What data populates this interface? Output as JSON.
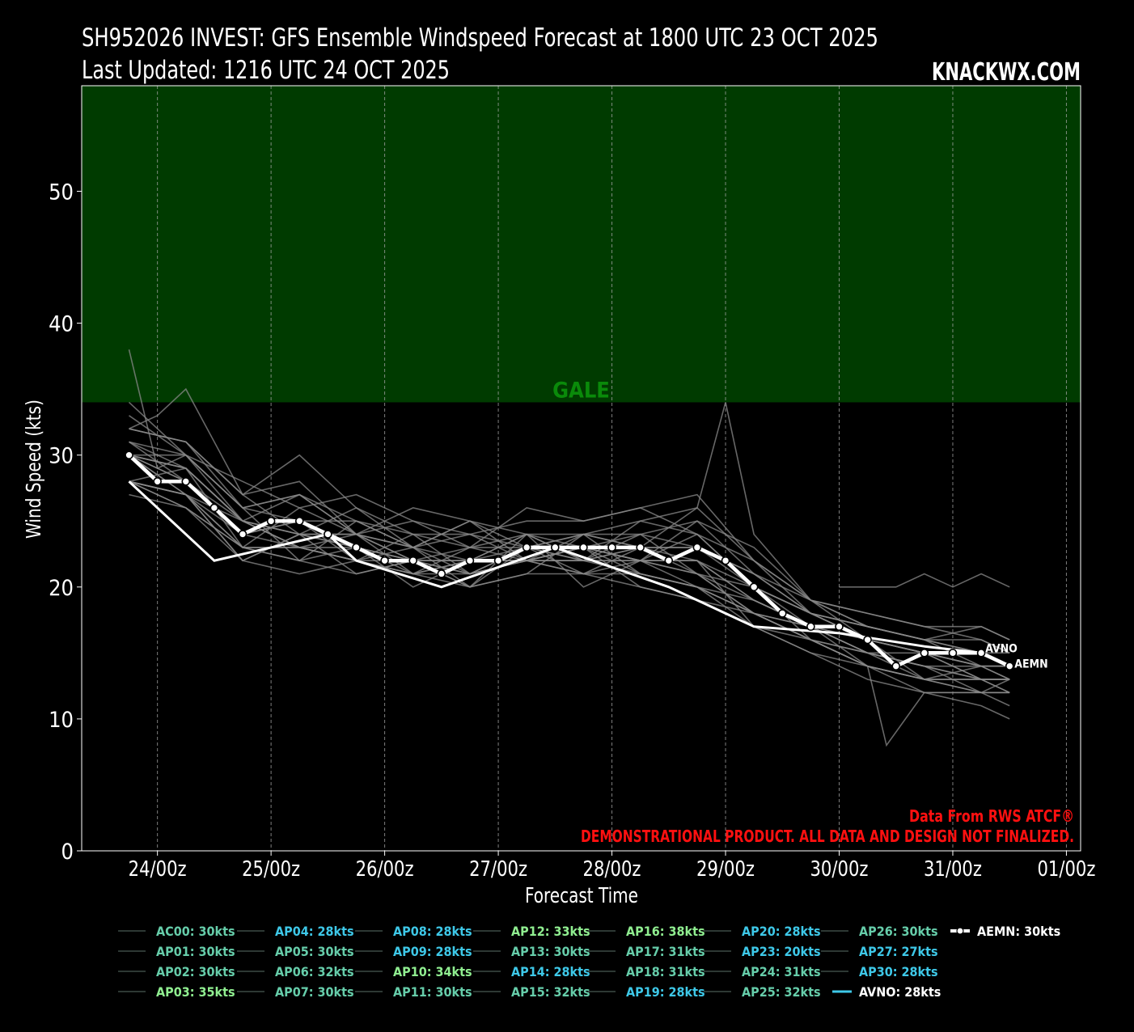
{
  "header": {
    "title": "SH952026 INVEST: GFS Ensemble Windspeed Forecast at 1800 UTC 23 OCT 2025",
    "updated": "Last Updated: 1216 UTC 24 OCT 2025",
    "brand": "KNACKWX.COM"
  },
  "credits": {
    "source": "Data From RWS ATCF®",
    "disclaimer": "DEMONSTRATIONAL PRODUCT. ALL DATA AND DESIGN NOT FINALIZED."
  },
  "colors": {
    "background": "#000000",
    "gale_band": "#003b00",
    "gale_label": "#0a8a0a",
    "ensemble_line": "#8a8a8a",
    "mean_line": "#ffffff",
    "credit_text": "#ff1010",
    "legend_green": "#90ee90",
    "legend_teal": "#66cdaa",
    "legend_cyan": "#3ec8e8"
  },
  "chart_data": {
    "type": "line",
    "xlabel": "Forecast Time",
    "ylabel": "Wind Speed (kts)",
    "ylim": [
      0,
      58
    ],
    "yticks": [
      0,
      10,
      20,
      30,
      40,
      50
    ],
    "x_tick_labels": [
      "24/00z",
      "25/00z",
      "26/00z",
      "27/00z",
      "28/00z",
      "29/00z",
      "30/00z",
      "31/00z",
      "01/00z"
    ],
    "x_tick_hours": [
      6,
      30,
      54,
      78,
      102,
      126,
      150,
      174,
      198
    ],
    "x_range_hours": [
      -10,
      201
    ],
    "threshold_band": {
      "label": "GALE",
      "from": 34,
      "to": 58
    },
    "grid": "vertical dashed at x ticks",
    "series": [
      {
        "name": "AEMN",
        "legend": "AEMN: 30kts",
        "style": "mean",
        "x": [
          0,
          6,
          12,
          18,
          24,
          30,
          36,
          42,
          48,
          54,
          60,
          66,
          72,
          78,
          84,
          90,
          96,
          102,
          108,
          114,
          120,
          126,
          132,
          138,
          144,
          150,
          156,
          162,
          168,
          174,
          180,
          186
        ],
        "y": [
          30,
          28,
          28,
          26,
          24,
          25,
          25,
          24,
          23,
          22,
          22,
          21,
          22,
          22,
          23,
          23,
          23,
          23,
          23,
          22,
          23,
          22,
          20,
          18,
          17,
          17,
          16,
          14,
          15,
          15,
          15,
          14
        ]
      },
      {
        "name": "AVNO",
        "legend": "AVNO: 28kts",
        "style": "deterministic",
        "x": [
          0,
          18,
          30,
          42,
          48,
          66,
          78,
          90,
          102,
          114,
          126,
          132,
          150,
          168,
          180
        ],
        "y": [
          28,
          22,
          23,
          24,
          22,
          20,
          21.5,
          23,
          21.5,
          20,
          18,
          17,
          16.5,
          15.5,
          15
        ]
      },
      {
        "name": "AC00",
        "legend": "AC00: 30kts",
        "color": "#66cdaa",
        "x": [
          0,
          12,
          24,
          36,
          48,
          60,
          72,
          84,
          96,
          108,
          120,
          132,
          144,
          156,
          168,
          180,
          186
        ],
        "y": [
          30,
          29,
          25,
          24,
          24,
          22,
          22,
          23,
          24,
          23,
          23,
          21,
          18,
          17,
          16,
          15,
          14
        ]
      },
      {
        "name": "AP01",
        "legend": "AP01: 30kts",
        "color": "#66cdaa",
        "x": [
          0,
          12,
          24,
          36,
          48,
          60,
          72,
          84,
          96,
          108,
          120,
          132,
          144,
          156,
          168,
          180,
          186
        ],
        "y": [
          30,
          28,
          24,
          25,
          23,
          22,
          21,
          23,
          23,
          22,
          22,
          19,
          17,
          15,
          14,
          13,
          13
        ]
      },
      {
        "name": "AP02",
        "legend": "AP02: 30kts",
        "color": "#66cdaa",
        "x": [
          0,
          12,
          24,
          36,
          48,
          60,
          72,
          84,
          96,
          108,
          120,
          132,
          144,
          156,
          168,
          180,
          186
        ],
        "y": [
          30,
          27,
          25,
          23,
          22,
          21,
          22,
          24,
          22,
          24,
          21,
          18,
          16,
          14,
          13,
          12,
          13
        ]
      },
      {
        "name": "AP03",
        "legend": "AP03: 35kts",
        "color": "#90ee90",
        "x": [
          0,
          6,
          12,
          24,
          36,
          48,
          60,
          72,
          84,
          96,
          108,
          120,
          132,
          144,
          156,
          168,
          180,
          186
        ],
        "y": [
          32,
          33,
          35,
          27,
          28,
          24,
          25,
          23,
          26,
          25,
          26,
          27,
          22,
          19,
          16,
          15,
          13,
          13
        ]
      },
      {
        "name": "AP04",
        "legend": "AP04: 28kts",
        "color": "#3ec8e8",
        "x": [
          0,
          12,
          24,
          36,
          48,
          60,
          72,
          84,
          96,
          108,
          120,
          132,
          144,
          156,
          168,
          180,
          186
        ],
        "y": [
          28,
          27,
          23,
          26,
          24,
          21,
          23,
          22,
          22,
          25,
          24,
          20,
          18,
          16,
          15,
          14,
          14
        ]
      },
      {
        "name": "AP05",
        "legend": "AP05: 30kts",
        "color": "#66cdaa",
        "x": [
          0,
          12,
          24,
          36,
          48,
          60,
          72,
          84,
          96,
          108,
          120,
          132,
          144,
          156,
          168,
          180,
          186
        ],
        "y": [
          30,
          30,
          26,
          22,
          25,
          23,
          20,
          21,
          24,
          21,
          20,
          19,
          17,
          15,
          14,
          12,
          12
        ]
      },
      {
        "name": "AP06",
        "legend": "AP06: 32kts",
        "color": "#66cdaa",
        "x": [
          0,
          12,
          24,
          36,
          48,
          60,
          72,
          84,
          96,
          108,
          120,
          132,
          144,
          156,
          168,
          180,
          186
        ],
        "y": [
          32,
          31,
          27,
          30,
          26,
          23,
          25,
          24,
          23,
          22,
          25,
          23,
          19,
          17,
          16,
          17,
          16
        ]
      },
      {
        "name": "AP07",
        "legend": "AP07: 30kts",
        "color": "#66cdaa",
        "x": [
          0,
          12,
          24,
          36,
          48,
          60,
          72,
          84,
          96,
          108,
          120,
          132,
          144,
          156,
          168,
          180,
          186
        ],
        "y": [
          30,
          29,
          25,
          23,
          22,
          24,
          21,
          23,
          22,
          23,
          23,
          20,
          16,
          15,
          13,
          14,
          13
        ]
      },
      {
        "name": "AP08",
        "legend": "AP08: 28kts",
        "color": "#3ec8e8",
        "x": [
          0,
          12,
          24,
          36,
          48,
          60,
          72,
          84,
          96,
          108,
          120,
          132,
          144,
          156,
          168,
          180,
          186
        ],
        "y": [
          28,
          27,
          22,
          24,
          23,
          20,
          22,
          22,
          21,
          23,
          21,
          18,
          17,
          16,
          13,
          12,
          12
        ]
      },
      {
        "name": "AP09",
        "legend": "AP09: 28kts",
        "color": "#3ec8e8",
        "x": [
          0,
          12,
          24,
          36,
          48,
          60,
          72,
          84,
          96,
          108,
          120,
          132,
          144,
          156,
          168,
          180,
          186
        ],
        "y": [
          28,
          29,
          23,
          22,
          21,
          22,
          20,
          24,
          20,
          22,
          22,
          17,
          15,
          13,
          12,
          11,
          10
        ]
      },
      {
        "name": "AP10",
        "legend": "AP10: 34kts",
        "color": "#90ee90",
        "x": [
          0,
          12,
          24,
          36,
          48,
          60,
          72,
          84,
          96,
          108,
          120,
          132,
          144,
          156,
          168,
          180,
          186
        ],
        "y": [
          34,
          30,
          28,
          26,
          27,
          25,
          24,
          25,
          25,
          26,
          24,
          22,
          19,
          18,
          17,
          16,
          15
        ]
      },
      {
        "name": "AP11",
        "legend": "AP11: 30kts",
        "color": "#66cdaa",
        "x": [
          0,
          12,
          24,
          36,
          48,
          60,
          72,
          84,
          96,
          108,
          120,
          132,
          144,
          156,
          168,
          180,
          186
        ],
        "y": [
          30,
          28,
          24,
          23,
          24,
          22,
          22,
          22,
          23,
          20,
          19,
          18,
          16,
          15,
          15,
          13,
          13
        ]
      },
      {
        "name": "AP12",
        "legend": "AP12: 33kts",
        "color": "#90ee90",
        "x": [
          0,
          12,
          24,
          36,
          48,
          60,
          72,
          84,
          96,
          108,
          120,
          132,
          144,
          156,
          168,
          180,
          186
        ],
        "y": [
          33,
          30,
          26,
          27,
          24,
          26,
          25,
          23,
          24,
          25,
          26,
          22,
          18,
          16,
          15,
          14,
          14
        ]
      },
      {
        "name": "AP13",
        "legend": "AP13: 30kts",
        "color": "#66cdaa",
        "x": [
          0,
          12,
          24,
          36,
          48,
          60,
          72,
          84,
          96,
          108,
          120,
          132,
          144,
          156,
          168,
          180,
          186
        ],
        "y": [
          30,
          27,
          24,
          25,
          22,
          23,
          21,
          22,
          23,
          22,
          21,
          19,
          17,
          14,
          13,
          13,
          12
        ]
      },
      {
        "name": "AP14",
        "legend": "AP14: 28kts",
        "color": "#3ec8e8",
        "x": [
          0,
          12,
          24,
          36,
          48,
          60,
          72,
          84,
          96,
          108,
          120,
          132,
          144,
          156,
          168,
          180,
          186
        ],
        "y": [
          28,
          26,
          23,
          22,
          23,
          21,
          22,
          22,
          22,
          21,
          20,
          18,
          17,
          15,
          14,
          13,
          13
        ]
      },
      {
        "name": "AP15",
        "legend": "AP15: 32kts",
        "color": "#66cdaa",
        "x": [
          0,
          12,
          24,
          36,
          48,
          60,
          72,
          84,
          96,
          108,
          120,
          132,
          144,
          156,
          168,
          180,
          186
        ],
        "y": [
          32,
          31,
          26,
          27,
          25,
          24,
          24,
          22,
          23,
          24,
          25,
          21,
          18,
          17,
          16,
          15,
          15
        ]
      },
      {
        "name": "AP16",
        "legend": "AP16: 38kts",
        "color": "#90ee90",
        "x": [
          0,
          6,
          12,
          24,
          36,
          48,
          60,
          72,
          84,
          96,
          108,
          120,
          126,
          132,
          144,
          156,
          168,
          180,
          186
        ],
        "y": [
          38,
          29,
          30,
          25,
          27,
          24,
          23,
          25,
          22,
          24,
          23,
          26,
          34,
          24,
          19,
          17,
          16,
          14,
          14
        ]
      },
      {
        "name": "AP17",
        "legend": "AP17: 31kts",
        "color": "#66cdaa",
        "x": [
          0,
          12,
          24,
          36,
          48,
          60,
          72,
          84,
          96,
          108,
          120,
          132,
          144,
          156,
          168,
          180,
          186
        ],
        "y": [
          31,
          29,
          25,
          24,
          24,
          23,
          22,
          24,
          22,
          23,
          22,
          20,
          17,
          16,
          15,
          15,
          14
        ]
      },
      {
        "name": "AP18",
        "legend": "AP18: 31kts",
        "color": "#66cdaa",
        "x": [
          0,
          12,
          24,
          36,
          48,
          60,
          72,
          84,
          96,
          108,
          120,
          132,
          144,
          156,
          168,
          180,
          186
        ],
        "y": [
          31,
          28,
          25,
          23,
          23,
          22,
          23,
          23,
          22,
          22,
          24,
          20,
          18,
          17,
          16,
          16,
          15
        ]
      },
      {
        "name": "AP19",
        "legend": "AP19: 28kts",
        "color": "#3ec8e8",
        "x": [
          0,
          12,
          24,
          36,
          48,
          60,
          72,
          84,
          96,
          108,
          120,
          132,
          144,
          156,
          168,
          180,
          186
        ],
        "y": [
          28,
          27,
          22,
          24,
          21,
          22,
          20,
          23,
          21,
          20,
          19,
          17,
          15,
          14,
          12,
          12,
          11
        ]
      },
      {
        "name": "AP20",
        "legend": "AP20: 28kts",
        "color": "#3ec8e8",
        "x": [
          0,
          12,
          24,
          36,
          48,
          60,
          72,
          84,
          96,
          108,
          120,
          132,
          144,
          156,
          168,
          180,
          186
        ],
        "y": [
          28,
          27,
          23,
          23,
          22,
          22,
          21,
          22,
          23,
          21,
          20,
          18,
          16,
          14,
          13,
          13,
          12
        ]
      },
      {
        "name": "AP23",
        "legend": "AP23: 20kts",
        "color": "#3ec8e8",
        "x": [
          150,
          156,
          162,
          168,
          174,
          180,
          186
        ],
        "y": [
          20,
          20,
          20,
          21,
          20,
          21,
          20
        ]
      },
      {
        "name": "AP24",
        "legend": "AP24: 31kts",
        "color": "#66cdaa",
        "x": [
          0,
          12,
          24,
          36,
          48,
          60,
          72,
          84,
          96,
          108,
          120,
          132,
          144,
          156,
          168,
          180,
          186
        ],
        "y": [
          31,
          30,
          26,
          25,
          25,
          23,
          24,
          23,
          23,
          22,
          21,
          20,
          18,
          16,
          15,
          14,
          14
        ]
      },
      {
        "name": "AP25",
        "legend": "AP25: 32kts",
        "color": "#66cdaa",
        "x": [
          0,
          12,
          24,
          36,
          48,
          60,
          72,
          84,
          96,
          108,
          120,
          132,
          144,
          156,
          168,
          180,
          186
        ],
        "y": [
          32,
          31,
          27,
          24,
          26,
          24,
          23,
          24,
          24,
          24,
          23,
          21,
          19,
          18,
          17,
          17,
          16
        ]
      },
      {
        "name": "AP26",
        "legend": "AP26: 30kts",
        "color": "#66cdaa",
        "x": [
          0,
          12,
          24,
          36,
          48,
          60,
          72,
          84,
          96,
          108,
          120,
          132,
          144,
          156,
          168,
          180,
          186
        ],
        "y": [
          30,
          29,
          25,
          24,
          23,
          22,
          22,
          22,
          22,
          22,
          22,
          19,
          17,
          15,
          14,
          14,
          13
        ]
      },
      {
        "name": "AP27",
        "legend": "AP27: 27kts",
        "color": "#3ec8e8",
        "x": [
          0,
          12,
          24,
          36,
          48,
          60,
          72,
          84,
          96,
          108,
          120,
          132,
          144,
          156,
          160,
          168,
          180,
          186
        ],
        "y": [
          27,
          26,
          22,
          21,
          22,
          21,
          20,
          21,
          21,
          21,
          20,
          17,
          16,
          14,
          8,
          12,
          12,
          12
        ]
      },
      {
        "name": "AP30",
        "legend": "AP30: 28kts",
        "color": "#3ec8e8",
        "x": [
          0,
          12,
          24,
          36,
          48,
          60,
          72,
          84,
          96,
          108,
          120,
          132,
          144,
          156,
          168,
          180,
          186
        ],
        "y": [
          28,
          26,
          23,
          23,
          22,
          21,
          21,
          22,
          21,
          22,
          20,
          18,
          16,
          14,
          13,
          13,
          13
        ]
      }
    ]
  }
}
